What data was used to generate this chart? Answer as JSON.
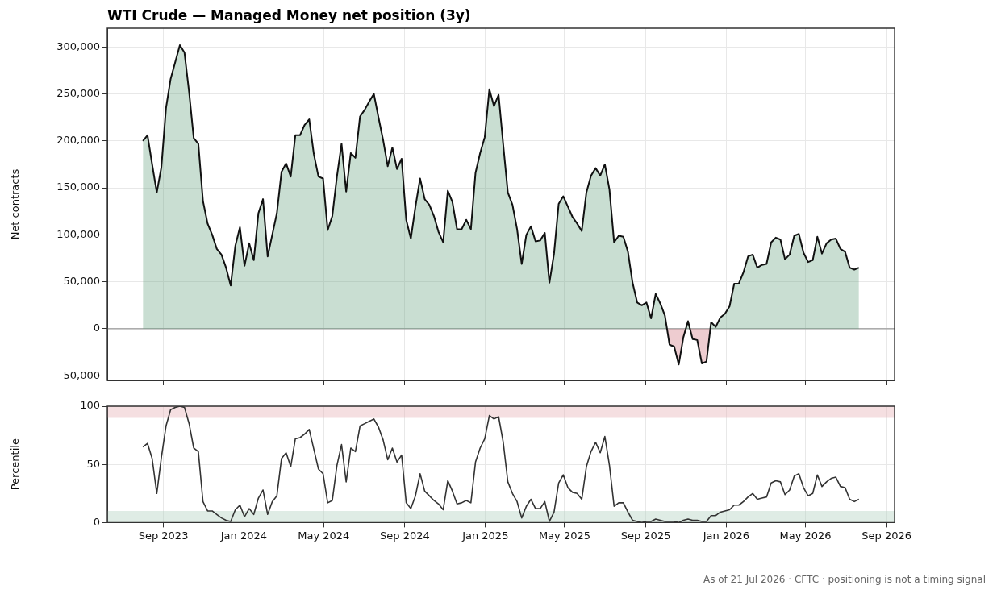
{
  "chart_data": [
    {
      "type": "area",
      "title": "WTI Crude — Managed Money net position (3y)",
      "ylabel": "Net contracts",
      "x": [
        "2023-08-01",
        "2023-08-08",
        "2023-08-15",
        "2023-08-22",
        "2023-08-29",
        "2023-09-05",
        "2023-09-12",
        "2023-09-19",
        "2023-09-26",
        "2023-10-03",
        "2023-10-10",
        "2023-10-17",
        "2023-10-24",
        "2023-10-31",
        "2023-11-07",
        "2023-11-14",
        "2023-11-21",
        "2023-11-28",
        "2023-12-05",
        "2023-12-12",
        "2023-12-19",
        "2023-12-26",
        "2024-01-02",
        "2024-01-09",
        "2024-01-16",
        "2024-01-23",
        "2024-01-30",
        "2024-02-06",
        "2024-02-13",
        "2024-02-20",
        "2024-02-27",
        "2024-03-05",
        "2024-03-12",
        "2024-03-19",
        "2024-03-26",
        "2024-04-02",
        "2024-04-09",
        "2024-04-16",
        "2024-04-23",
        "2024-04-30",
        "2024-05-07",
        "2024-05-14",
        "2024-05-21",
        "2024-05-28",
        "2024-06-04",
        "2024-06-11",
        "2024-06-18",
        "2024-06-25",
        "2024-07-02",
        "2024-07-09",
        "2024-07-16",
        "2024-07-23",
        "2024-07-30",
        "2024-08-06",
        "2024-08-13",
        "2024-08-20",
        "2024-08-27",
        "2024-09-03",
        "2024-09-10",
        "2024-09-17",
        "2024-09-24",
        "2024-10-01",
        "2024-10-08",
        "2024-10-15",
        "2024-10-22",
        "2024-10-29",
        "2024-11-05",
        "2024-11-12",
        "2024-11-19",
        "2024-11-26",
        "2024-12-03",
        "2024-12-10",
        "2024-12-17",
        "2024-12-24",
        "2024-12-31",
        "2025-01-07",
        "2025-01-14",
        "2025-01-21",
        "2025-01-28",
        "2025-02-04",
        "2025-02-11",
        "2025-02-18",
        "2025-02-25",
        "2025-03-04",
        "2025-03-11",
        "2025-03-18",
        "2025-03-25",
        "2025-04-01",
        "2025-04-08",
        "2025-04-15",
        "2025-04-22",
        "2025-04-29",
        "2025-05-06",
        "2025-05-13",
        "2025-05-20",
        "2025-05-27",
        "2025-06-03",
        "2025-06-10",
        "2025-06-17",
        "2025-06-24",
        "2025-07-01",
        "2025-07-08",
        "2025-07-15",
        "2025-07-22",
        "2025-07-29",
        "2025-08-05",
        "2025-08-12",
        "2025-08-19",
        "2025-08-26",
        "2025-09-02",
        "2025-09-09",
        "2025-09-16",
        "2025-09-23",
        "2025-09-30",
        "2025-10-07",
        "2025-10-14",
        "2025-10-21",
        "2025-10-28",
        "2025-11-04",
        "2025-11-11",
        "2025-11-18",
        "2025-11-25",
        "2025-12-02",
        "2025-12-09",
        "2025-12-16",
        "2025-12-23",
        "2025-12-30",
        "2026-01-06",
        "2026-01-13",
        "2026-01-20",
        "2026-01-27",
        "2026-02-03",
        "2026-02-10",
        "2026-02-17",
        "2026-02-24",
        "2026-03-03",
        "2026-03-10",
        "2026-03-17",
        "2026-03-24",
        "2026-03-31",
        "2026-04-07",
        "2026-04-14",
        "2026-04-21",
        "2026-04-28",
        "2026-05-05",
        "2026-05-12",
        "2026-05-19",
        "2026-05-26",
        "2026-06-02",
        "2026-06-09",
        "2026-06-16",
        "2026-06-23",
        "2026-06-30",
        "2026-07-07",
        "2026-07-14",
        "2026-07-21"
      ],
      "series": [
        {
          "color": "#111111",
          "values": [
            200000,
            206000,
            175000,
            145000,
            172000,
            235000,
            266000,
            284000,
            302000,
            294000,
            252000,
            203000,
            197000,
            136000,
            112000,
            100000,
            85000,
            79000,
            65000,
            46000,
            88000,
            108000,
            67000,
            91000,
            73000,
            123000,
            138000,
            77000,
            100000,
            123000,
            167000,
            176000,
            162000,
            206000,
            206000,
            217000,
            223000,
            186000,
            162000,
            160000,
            105000,
            120000,
            162000,
            197000,
            146000,
            187000,
            182000,
            226000,
            233000,
            242000,
            250000,
            225000,
            201000,
            173000,
            193000,
            170000,
            181000,
            116000,
            96000,
            130000,
            160000,
            138000,
            132000,
            120000,
            103000,
            92000,
            147000,
            135000,
            106000,
            106000,
            116000,
            106000,
            166000,
            187000,
            204000,
            255000,
            237000,
            249000,
            196000,
            145000,
            132000,
            106000,
            69000,
            100000,
            109000,
            93000,
            94000,
            102000,
            49000,
            80000,
            133000,
            141000,
            130000,
            119000,
            112000,
            104000,
            145000,
            163000,
            171000,
            163000,
            175000,
            148000,
            92000,
            99000,
            98000,
            82000,
            49000,
            28000,
            25000,
            28000,
            11000,
            37000,
            27000,
            14000,
            -17000,
            -19000,
            -38000,
            -9000,
            8000,
            -11000,
            -12000,
            -37000,
            -35000,
            7000,
            2000,
            12000,
            16000,
            24000,
            48000,
            48000,
            60000,
            77000,
            79000,
            65000,
            68000,
            69000,
            92000,
            97000,
            95000,
            74000,
            79000,
            99000,
            101000,
            81000,
            71000,
            73000,
            98000,
            80000,
            91000,
            95000,
            96000,
            85000,
            82000,
            65000,
            63000,
            65000
          ]
        }
      ],
      "xlim": [
        "2023-06-08",
        "2026-09-13"
      ],
      "xticks": [
        {
          "value": "2023-09",
          "label": null
        },
        {
          "value": "2024-01",
          "label": null
        },
        {
          "value": "2024-05",
          "label": null
        },
        {
          "value": "2024-09",
          "label": null
        },
        {
          "value": "2025-01",
          "label": null
        },
        {
          "value": "2025-05",
          "label": null
        },
        {
          "value": "2025-09",
          "label": null
        },
        {
          "value": "2026-01",
          "label": null
        },
        {
          "value": "2026-05",
          "label": null
        },
        {
          "value": "2026-09",
          "label": null
        }
      ],
      "ylim": [
        -55000,
        320000
      ],
      "yticks": [
        {
          "value": -50000,
          "label": "-50,000"
        },
        0,
        {
          "value": 50000,
          "label": "50,000"
        },
        {
          "value": 100000,
          "label": "100,000"
        },
        {
          "value": 150000,
          "label": "150,000"
        },
        {
          "value": 200000,
          "label": "200,000"
        },
        {
          "value": 250000,
          "label": "250,000"
        },
        {
          "value": 300000,
          "label": "300,000"
        }
      ],
      "ref_lines": [
        {
          "axis": "y",
          "value": 0,
          "color": "#999999"
        }
      ],
      "grid": true,
      "tick_labels": "y"
    },
    {
      "type": "line",
      "ylabel": "Percentile",
      "x": [
        "2023-08-01",
        "2023-08-08",
        "2023-08-15",
        "2023-08-22",
        "2023-08-29",
        "2023-09-05",
        "2023-09-12",
        "2023-09-19",
        "2023-09-26",
        "2023-10-03",
        "2023-10-10",
        "2023-10-17",
        "2023-10-24",
        "2023-10-31",
        "2023-11-07",
        "2023-11-14",
        "2023-11-21",
        "2023-11-28",
        "2023-12-05",
        "2023-12-12",
        "2023-12-19",
        "2023-12-26",
        "2024-01-02",
        "2024-01-09",
        "2024-01-16",
        "2024-01-23",
        "2024-01-30",
        "2024-02-06",
        "2024-02-13",
        "2024-02-20",
        "2024-02-27",
        "2024-03-05",
        "2024-03-12",
        "2024-03-19",
        "2024-03-26",
        "2024-04-02",
        "2024-04-09",
        "2024-04-16",
        "2024-04-23",
        "2024-04-30",
        "2024-05-07",
        "2024-05-14",
        "2024-05-21",
        "2024-05-28",
        "2024-06-04",
        "2024-06-11",
        "2024-06-18",
        "2024-06-25",
        "2024-07-02",
        "2024-07-09",
        "2024-07-16",
        "2024-07-23",
        "2024-07-30",
        "2024-08-06",
        "2024-08-13",
        "2024-08-20",
        "2024-08-27",
        "2024-09-03",
        "2024-09-10",
        "2024-09-17",
        "2024-09-24",
        "2024-10-01",
        "2024-10-08",
        "2024-10-15",
        "2024-10-22",
        "2024-10-29",
        "2024-11-05",
        "2024-11-12",
        "2024-11-19",
        "2024-11-26",
        "2024-12-03",
        "2024-12-10",
        "2024-12-17",
        "2024-12-24",
        "2024-12-31",
        "2025-01-07",
        "2025-01-14",
        "2025-01-21",
        "2025-01-28",
        "2025-02-04",
        "2025-02-11",
        "2025-02-18",
        "2025-02-25",
        "2025-03-04",
        "2025-03-11",
        "2025-03-18",
        "2025-03-25",
        "2025-04-01",
        "2025-04-08",
        "2025-04-15",
        "2025-04-22",
        "2025-04-29",
        "2025-05-06",
        "2025-05-13",
        "2025-05-20",
        "2025-05-27",
        "2025-06-03",
        "2025-06-10",
        "2025-06-17",
        "2025-06-24",
        "2025-07-01",
        "2025-07-08",
        "2025-07-15",
        "2025-07-22",
        "2025-07-29",
        "2025-08-05",
        "2025-08-12",
        "2025-08-19",
        "2025-08-26",
        "2025-09-02",
        "2025-09-09",
        "2025-09-16",
        "2025-09-23",
        "2025-09-30",
        "2025-10-07",
        "2025-10-14",
        "2025-10-21",
        "2025-10-28",
        "2025-11-04",
        "2025-11-11",
        "2025-11-18",
        "2025-11-25",
        "2025-12-02",
        "2025-12-09",
        "2025-12-16",
        "2025-12-23",
        "2025-12-30",
        "2026-01-06",
        "2026-01-13",
        "2026-01-20",
        "2026-01-27",
        "2026-02-03",
        "2026-02-10",
        "2026-02-17",
        "2026-02-24",
        "2026-03-03",
        "2026-03-10",
        "2026-03-17",
        "2026-03-24",
        "2026-03-31",
        "2026-04-07",
        "2026-04-14",
        "2026-04-21",
        "2026-04-28",
        "2026-05-05",
        "2026-05-12",
        "2026-05-19",
        "2026-05-26",
        "2026-06-02",
        "2026-06-09",
        "2026-06-16",
        "2026-06-23",
        "2026-06-30",
        "2026-07-07",
        "2026-07-14",
        "2026-07-21"
      ],
      "series": [
        {
          "color": "#333333",
          "values": [
            65,
            68,
            55,
            25,
            56,
            83,
            97,
            99,
            100,
            99,
            85,
            64,
            61,
            18,
            10,
            10,
            7,
            4,
            2,
            1,
            11,
            15,
            5,
            12,
            7,
            21,
            28,
            7,
            18,
            23,
            55,
            60,
            48,
            72,
            73,
            76,
            80,
            63,
            46,
            42,
            17,
            19,
            49,
            67,
            35,
            64,
            61,
            83,
            85,
            87,
            89,
            82,
            71,
            54,
            64,
            52,
            58,
            17,
            12,
            23,
            42,
            27,
            23,
            19,
            16,
            11,
            36,
            27,
            16,
            17,
            19,
            17,
            52,
            64,
            72,
            92,
            89,
            91,
            69,
            35,
            25,
            18,
            4,
            14,
            20,
            12,
            12,
            18,
            1,
            9,
            34,
            41,
            30,
            26,
            25,
            20,
            48,
            61,
            69,
            60,
            74,
            49,
            14,
            17,
            17,
            9,
            2,
            1,
            0,
            1,
            1,
            3,
            2,
            1,
            1,
            1,
            0,
            2,
            3,
            2,
            2,
            1,
            1,
            6,
            6,
            9,
            10,
            11,
            15,
            15,
            18,
            22,
            25,
            20,
            21,
            22,
            34,
            36,
            35,
            24,
            28,
            40,
            42,
            30,
            23,
            25,
            41,
            31,
            35,
            38,
            39,
            31,
            30,
            20,
            18,
            20
          ]
        }
      ],
      "xlim": [
        "2023-06-08",
        "2026-09-13"
      ],
      "xticks": [
        {
          "value": "2023-09",
          "label": "Sep 2023"
        },
        {
          "value": "2024-01",
          "label": "Jan 2024"
        },
        {
          "value": "2024-05",
          "label": "May 2024"
        },
        {
          "value": "2024-09",
          "label": "Sep 2024"
        },
        {
          "value": "2025-01",
          "label": "Jan 2025"
        },
        {
          "value": "2025-05",
          "label": "May 2025"
        },
        {
          "value": "2025-09",
          "label": "Sep 2025"
        },
        {
          "value": "2026-01",
          "label": "Jan 2026"
        },
        {
          "value": "2026-05",
          "label": "May 2026"
        },
        {
          "value": "2026-09",
          "label": "Sep 2026"
        }
      ],
      "ylim": [
        0,
        100
      ],
      "yticks": [
        0,
        50,
        100
      ],
      "bands": [
        {
          "axis": "y",
          "from": 90,
          "to": 100,
          "color": "#e8b8bd"
        },
        {
          "axis": "y",
          "from": 0,
          "to": 10,
          "color": "#b9d5c5"
        }
      ],
      "grid": true,
      "annotations": [
        "As of 21 Jul 2026 · CFTC · positioning is not a timing signal"
      ]
    }
  ]
}
